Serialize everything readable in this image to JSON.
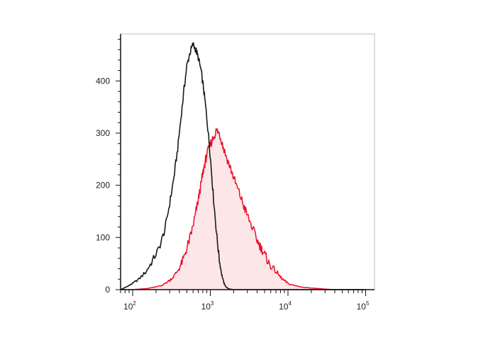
{
  "chart_data": {
    "type": "area",
    "title": "",
    "xlabel": "",
    "ylabel": "",
    "x_scale": "log",
    "xlim": [
      70,
      130000
    ],
    "ylim": [
      0,
      490
    ],
    "grid": false,
    "x_ticks": [
      {
        "base": "10",
        "exp": "2",
        "value": 100
      },
      {
        "base": "10",
        "exp": "3",
        "value": 1000
      },
      {
        "base": "10",
        "exp": "4",
        "value": 10000
      },
      {
        "base": "10",
        "exp": "5",
        "value": 100000
      }
    ],
    "y_ticks": [
      {
        "label": "0",
        "value": 0
      },
      {
        "label": "100",
        "value": 100
      },
      {
        "label": "200",
        "value": 200
      },
      {
        "label": "300",
        "value": 300
      },
      {
        "label": "400",
        "value": 400
      }
    ],
    "series": [
      {
        "color": "#1a1a1a",
        "fill": "none",
        "x": [
          70,
          80,
          90,
          100,
          120,
          150,
          180,
          220,
          260,
          300,
          340,
          380,
          420,
          460,
          500,
          550,
          600,
          650,
          700,
          760,
          820,
          880,
          950,
          1020,
          1100,
          1200,
          1300,
          1400,
          1500,
          1600,
          1700,
          1800,
          2000,
          3000,
          10000,
          100000
        ],
        "y": [
          0,
          4,
          8,
          12,
          20,
          35,
          55,
          80,
          115,
          165,
          215,
          270,
          330,
          385,
          430,
          455,
          470,
          460,
          445,
          420,
          385,
          345,
          295,
          240,
          175,
          110,
          60,
          30,
          12,
          5,
          2,
          1,
          0,
          0,
          0,
          0
        ]
      },
      {
        "color": "#e8102a",
        "fill": "#fce6e8",
        "x": [
          70,
          100,
          150,
          200,
          250,
          300,
          350,
          400,
          450,
          500,
          550,
          600,
          650,
          700,
          750,
          800,
          850,
          900,
          1000,
          1100,
          1200,
          1300,
          1400,
          1500,
          1700,
          1900,
          2100,
          2400,
          2700,
          3000,
          3500,
          4000,
          4500,
          5000,
          5500,
          6000,
          7000,
          8000,
          9000,
          10000,
          12000,
          15000,
          20000,
          25000,
          30000,
          40000,
          100000
        ],
        "y": [
          0,
          0,
          2,
          5,
          10,
          18,
          28,
          42,
          58,
          80,
          100,
          122,
          148,
          172,
          198,
          222,
          242,
          258,
          278,
          292,
          305,
          300,
          285,
          268,
          245,
          225,
          205,
          182,
          160,
          142,
          118,
          95,
          80,
          68,
          55,
          45,
          35,
          24,
          17,
          12,
          8,
          5,
          3,
          2,
          1,
          0,
          0
        ]
      }
    ]
  }
}
